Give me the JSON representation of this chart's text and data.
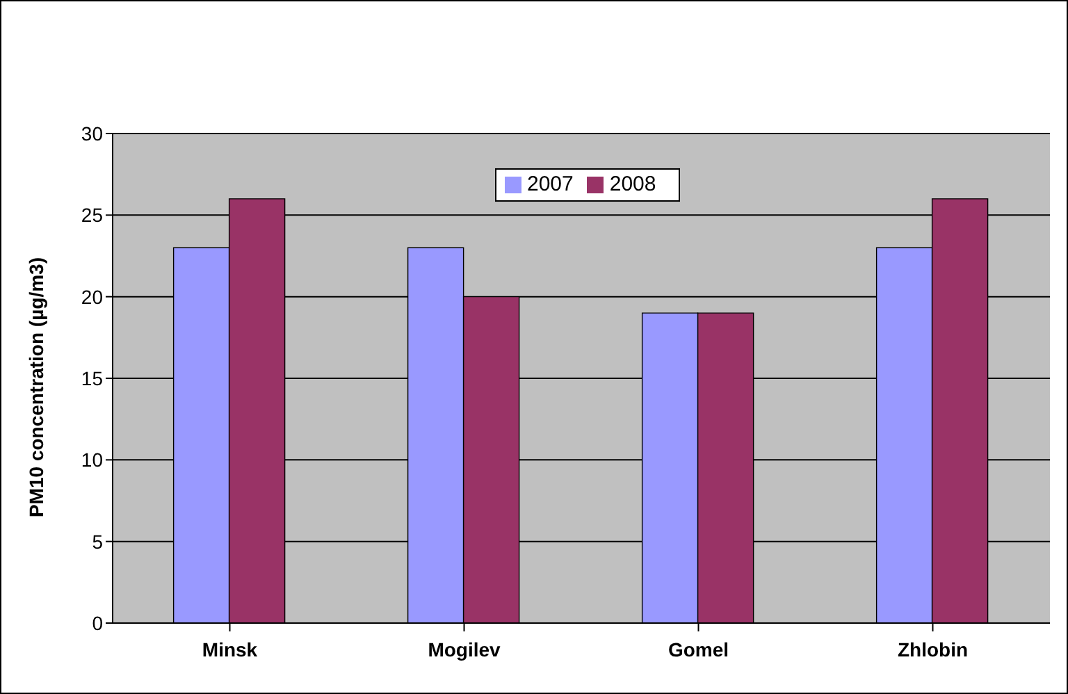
{
  "chart_data": {
    "type": "bar",
    "ylabel": "PM10 concentration (µg/m3)",
    "categories": [
      "Minsk",
      "Mogilev",
      "Gomel",
      "Zhlobin"
    ],
    "series": [
      {
        "name": "2007",
        "color": "#9999ff",
        "values": [
          23,
          23,
          19,
          23
        ]
      },
      {
        "name": "2008",
        "color": "#993366",
        "values": [
          26,
          20,
          19,
          26
        ]
      }
    ],
    "ylim": [
      0,
      30
    ],
    "yticks": [
      0,
      5,
      10,
      15,
      20,
      25,
      30
    ],
    "grid": "y",
    "legend": "top"
  }
}
